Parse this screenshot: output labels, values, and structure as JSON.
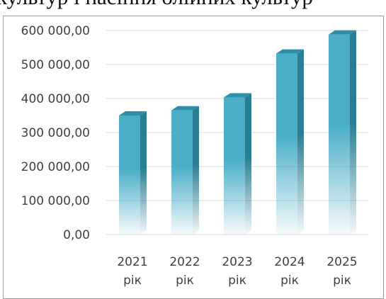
{
  "page": {
    "caption": "культур і насіння олійних культур"
  },
  "chart_data": {
    "type": "bar",
    "categories": [
      "2021 рік",
      "2022 рік",
      "2023 рік",
      "2024 рік",
      "2025 рік"
    ],
    "category_lines": [
      [
        "2021",
        "рік"
      ],
      [
        "2022",
        "рік"
      ],
      [
        "2023",
        "рік"
      ],
      [
        "2024",
        "рік"
      ],
      [
        "2025",
        "рік"
      ]
    ],
    "series": [
      {
        "values": [
          350000,
          365000,
          403000,
          532000,
          588000
        ]
      }
    ],
    "yticks": [
      0,
      100000,
      200000,
      300000,
      400000,
      500000,
      600000
    ],
    "ytick_labels": [
      "0,00",
      "100 000,00",
      "200 000,00",
      "300 000,00",
      "400 000,00",
      "500 000,00",
      "600 000,00"
    ],
    "ylim": [
      0,
      600000
    ],
    "grid": true,
    "legend": "none",
    "colors": {
      "bar": "#4aaec8",
      "bar_top": "#2f8fa8",
      "bar_side": "#2a7d93",
      "grid": "#d9d9d9",
      "text": "#404040"
    }
  }
}
